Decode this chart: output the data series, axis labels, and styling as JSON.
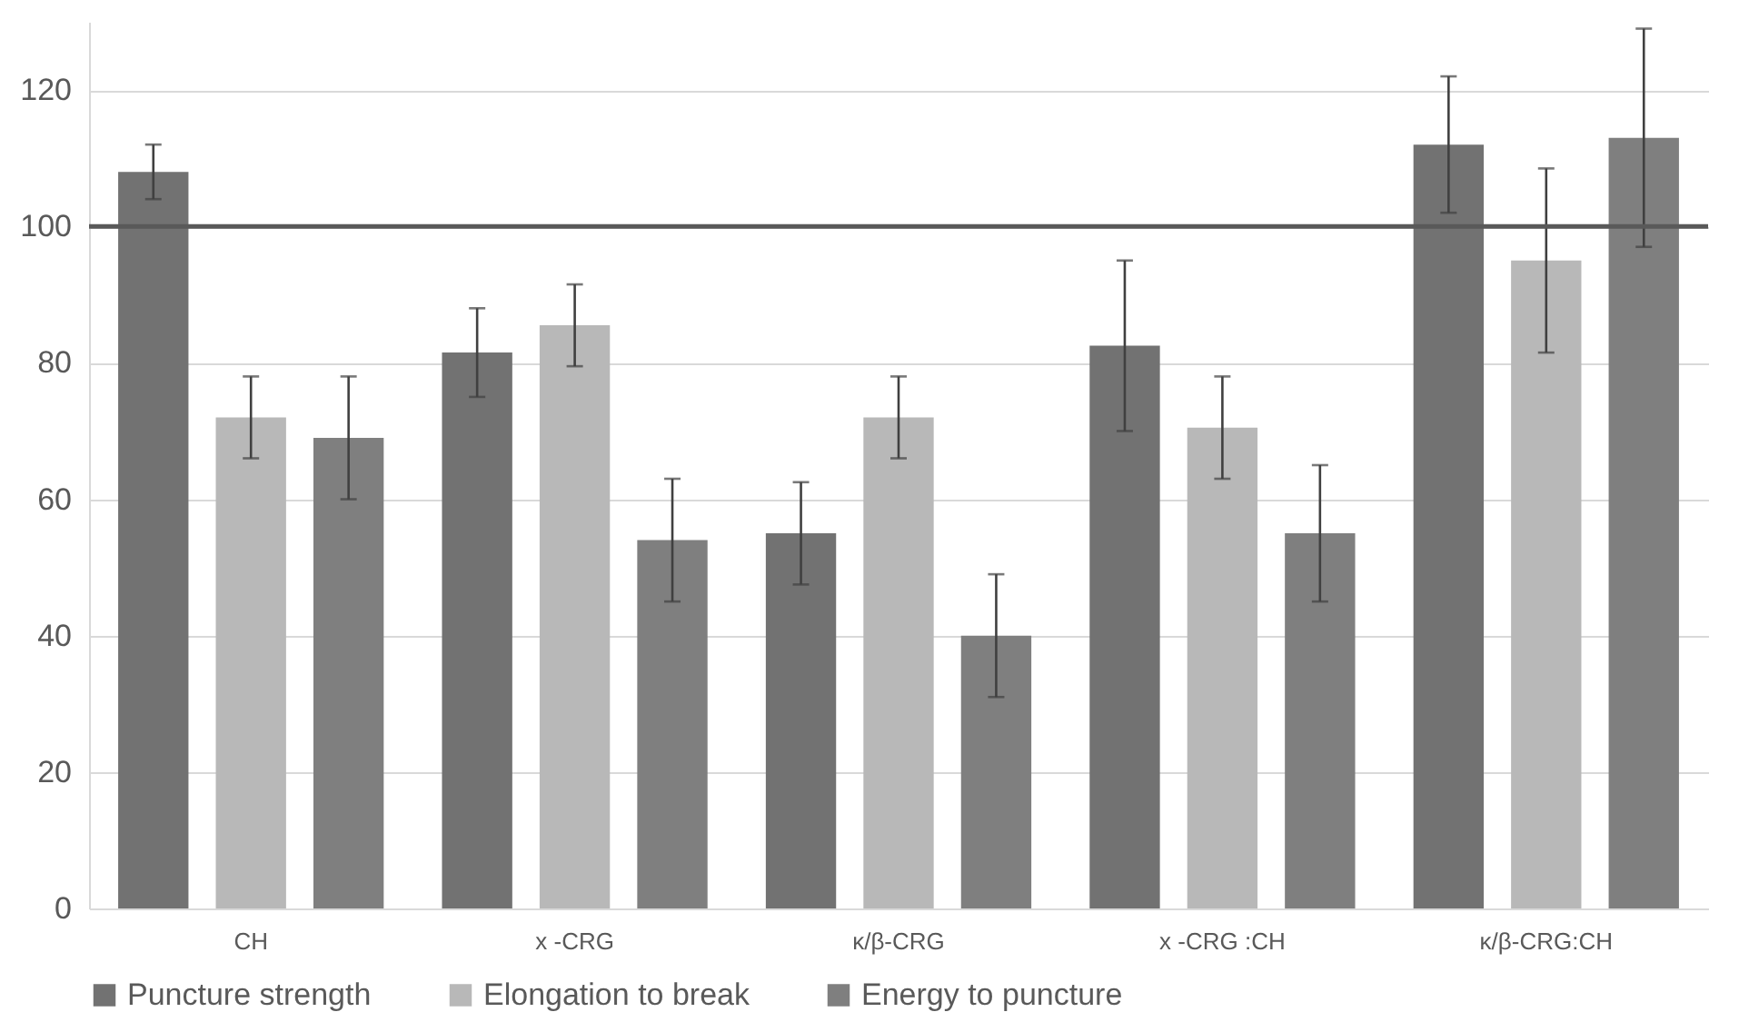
{
  "chart_data": {
    "type": "bar",
    "categories": [
      "CH",
      "x -CRG",
      "κ/β-CRG",
      "x -CRG :CH",
      "κ/β-CRG:CH"
    ],
    "series": [
      {
        "name": "Puncture strength",
        "color": "#727272",
        "values": [
          108,
          81.5,
          55,
          82.5,
          112
        ],
        "errors": [
          4,
          6.5,
          7.5,
          12.5,
          10
        ]
      },
      {
        "name": "Elongation to break",
        "color": "#b8b8b8",
        "values": [
          72,
          85.5,
          72,
          70.5,
          95
        ],
        "errors": [
          6,
          6,
          6,
          7.5,
          13.5
        ]
      },
      {
        "name": "Energy to puncture",
        "color": "#7f7f7f",
        "values": [
          69,
          54,
          40,
          55,
          113
        ],
        "errors": [
          9,
          9,
          9,
          10,
          16
        ]
      }
    ],
    "ylim": [
      0,
      130
    ],
    "yticks": [
      0,
      20,
      40,
      60,
      80,
      100,
      120
    ],
    "grid": "y",
    "legend": "bottom",
    "ref_lines": [
      {
        "axis": "y",
        "value": 100,
        "color": "#595959"
      }
    ]
  }
}
